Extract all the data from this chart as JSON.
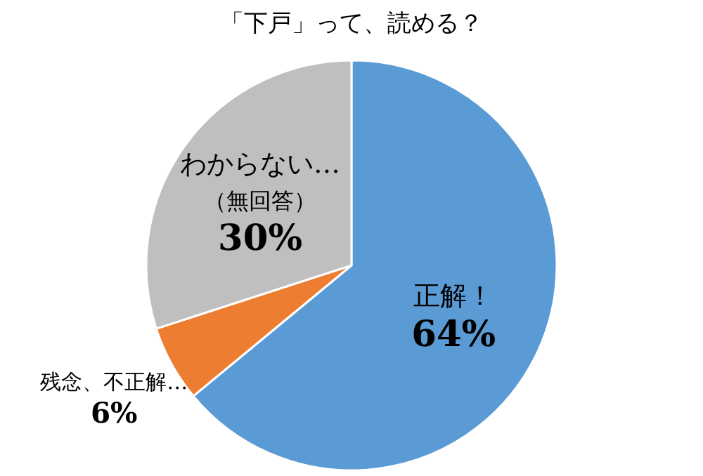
{
  "chart_data": {
    "type": "pie",
    "title": "「下戸」って、読める？",
    "categories": [
      "正解！",
      "残念、不正解…",
      "わからない…\n（無回答）"
    ],
    "values": [
      64,
      6,
      30
    ],
    "colors": [
      "#5b9bd5",
      "#ed7d31",
      "#bfbfbf"
    ],
    "value_labels": [
      "64%",
      "6%",
      "30%"
    ],
    "legend": false
  }
}
